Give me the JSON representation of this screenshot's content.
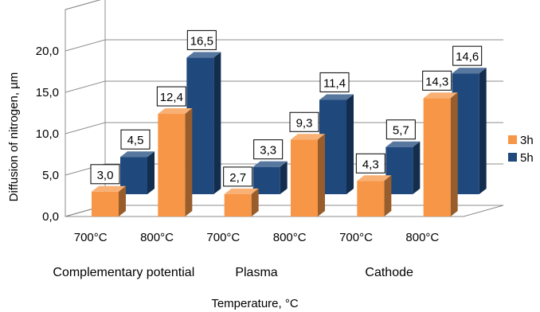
{
  "chart_data": {
    "type": "bar",
    "subtype": "3d-clustered-column",
    "ylabel": "Diffusion of nitrogen, µm",
    "xlabel": "Temperature, °C",
    "ylim": [
      0,
      25
    ],
    "y_ticks": [
      "0,0",
      "5,0",
      "10,0",
      "15,0",
      "20,0"
    ],
    "grid": true,
    "legend_position": "right",
    "categories": [
      "700°C",
      "800°C",
      "700°C",
      "800°C",
      "700°C",
      "800°C"
    ],
    "groups": [
      "Complementary potential",
      "Plasma",
      "Cathode"
    ],
    "series": [
      {
        "name": "3h",
        "color": "#F79646",
        "values": [
          3.0,
          12.4,
          2.7,
          9.3,
          4.3,
          14.3
        ],
        "labels": [
          "3,0",
          "12,4",
          "2,7",
          "9,3",
          "4,3",
          "14,3"
        ]
      },
      {
        "name": "5h",
        "color": "#1F497D",
        "values": [
          4.5,
          16.5,
          3.3,
          11.4,
          5.7,
          14.6
        ],
        "labels": [
          "4,5",
          "16,5",
          "3,3",
          "11,4",
          "5,7",
          "14,6"
        ]
      }
    ]
  }
}
